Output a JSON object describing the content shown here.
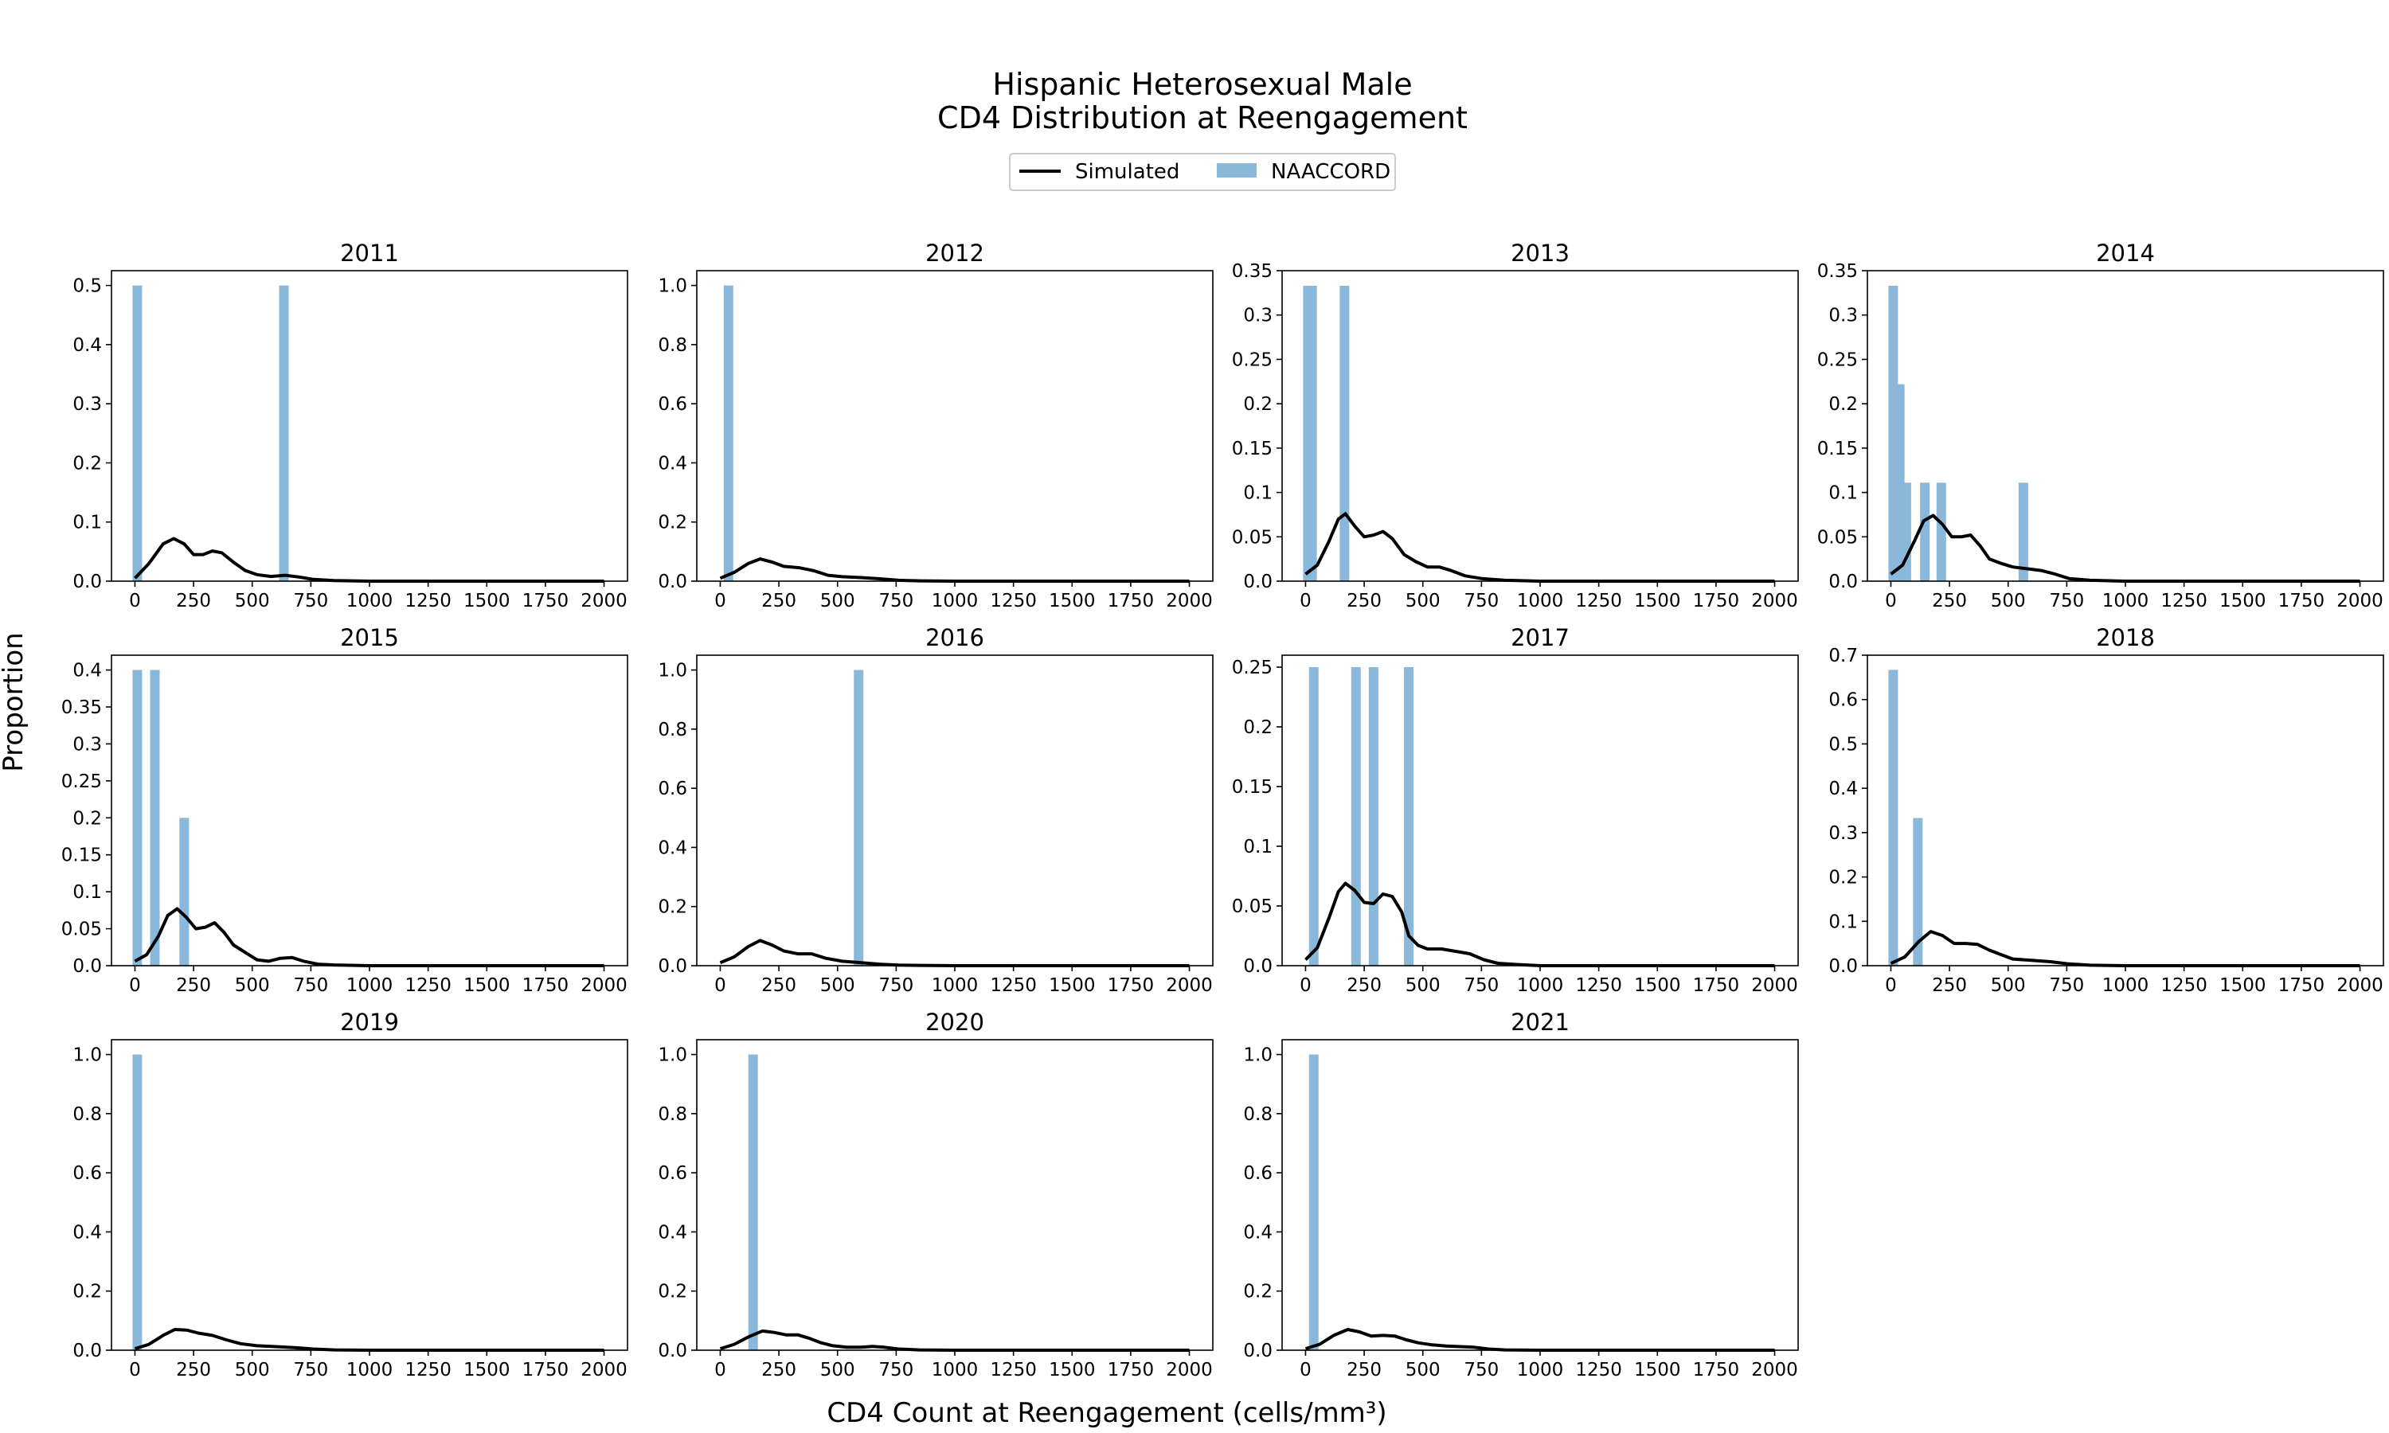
{
  "figure": {
    "title_lines": [
      "Hispanic Heterosexual Male",
      "CD4 Distribution at Reengagement"
    ],
    "xlabel": "CD4 Count at Reengagement (cells/mm³)",
    "ylabel": "Proportion"
  },
  "legend": {
    "placement": "top-center",
    "entries": [
      {
        "label": "Simulated",
        "kind": "line",
        "color": "#000000"
      },
      {
        "label": "NAACCORD",
        "kind": "bar",
        "color": "#8ab8da"
      }
    ]
  },
  "colors": {
    "simulated": "#000000",
    "naaccord": "#8ab8da"
  },
  "chart_data": [
    {
      "type": "bar+line",
      "title": "2011",
      "xlim": [
        -100,
        2100
      ],
      "ylim": [
        0,
        0.525
      ],
      "yticks": [
        0,
        0.1,
        0.2,
        0.3,
        0.4,
        0.5
      ],
      "bars": [
        {
          "x": 10,
          "h": 0.5
        },
        {
          "x": 635,
          "h": 0.5
        }
      ],
      "line": [
        [
          0,
          0.005
        ],
        [
          60,
          0.03
        ],
        [
          120,
          0.063
        ],
        [
          165,
          0.072
        ],
        [
          210,
          0.063
        ],
        [
          250,
          0.045
        ],
        [
          290,
          0.045
        ],
        [
          330,
          0.051
        ],
        [
          370,
          0.048
        ],
        [
          420,
          0.032
        ],
        [
          470,
          0.018
        ],
        [
          520,
          0.011
        ],
        [
          580,
          0.008
        ],
        [
          640,
          0.01
        ],
        [
          700,
          0.007
        ],
        [
          760,
          0.003
        ],
        [
          850,
          0.001
        ],
        [
          1000,
          0
        ],
        [
          2000,
          0
        ]
      ]
    },
    {
      "type": "bar+line",
      "title": "2012",
      "xlim": [
        -100,
        2100
      ],
      "ylim": [
        0,
        1.05
      ],
      "yticks": [
        0,
        0.2,
        0.4,
        0.6,
        0.8,
        1.0
      ],
      "bars": [
        {
          "x": 35,
          "h": 1.0
        }
      ],
      "line": [
        [
          0,
          0.01
        ],
        [
          60,
          0.03
        ],
        [
          120,
          0.06
        ],
        [
          170,
          0.075
        ],
        [
          220,
          0.065
        ],
        [
          270,
          0.05
        ],
        [
          340,
          0.045
        ],
        [
          400,
          0.035
        ],
        [
          460,
          0.02
        ],
        [
          520,
          0.015
        ],
        [
          600,
          0.012
        ],
        [
          680,
          0.008
        ],
        [
          760,
          0.003
        ],
        [
          850,
          0.001
        ],
        [
          1000,
          0
        ],
        [
          2000,
          0
        ]
      ]
    },
    {
      "type": "bar+line",
      "title": "2013",
      "xlim": [
        -100,
        2100
      ],
      "ylim": [
        0,
        0.35
      ],
      "yticks": [
        0,
        0.05,
        0.1,
        0.15,
        0.2,
        0.25,
        0.3,
        0.35
      ],
      "bars": [
        {
          "x": 10,
          "h": 0.333
        },
        {
          "x": 28,
          "h": 0.333
        },
        {
          "x": 166,
          "h": 0.333
        }
      ],
      "line": [
        [
          0,
          0.008
        ],
        [
          50,
          0.018
        ],
        [
          100,
          0.045
        ],
        [
          140,
          0.07
        ],
        [
          170,
          0.076
        ],
        [
          210,
          0.062
        ],
        [
          250,
          0.05
        ],
        [
          290,
          0.052
        ],
        [
          330,
          0.056
        ],
        [
          370,
          0.048
        ],
        [
          420,
          0.03
        ],
        [
          470,
          0.022
        ],
        [
          520,
          0.016
        ],
        [
          570,
          0.016
        ],
        [
          620,
          0.012
        ],
        [
          680,
          0.006
        ],
        [
          750,
          0.003
        ],
        [
          850,
          0.001
        ],
        [
          1000,
          0
        ],
        [
          2000,
          0
        ]
      ]
    },
    {
      "type": "bar+line",
      "title": "2014",
      "xlim": [
        -100,
        2100
      ],
      "ylim": [
        0,
        0.35
      ],
      "yticks": [
        0,
        0.05,
        0.1,
        0.15,
        0.2,
        0.25,
        0.3,
        0.35
      ],
      "bars": [
        {
          "x": 10,
          "h": 0.333
        },
        {
          "x": 38,
          "h": 0.222
        },
        {
          "x": 66,
          "h": 0.111
        },
        {
          "x": 145,
          "h": 0.111
        },
        {
          "x": 215,
          "h": 0.111
        },
        {
          "x": 565,
          "h": 0.111
        }
      ],
      "line": [
        [
          0,
          0.008
        ],
        [
          50,
          0.018
        ],
        [
          100,
          0.045
        ],
        [
          140,
          0.068
        ],
        [
          180,
          0.074
        ],
        [
          220,
          0.064
        ],
        [
          260,
          0.05
        ],
        [
          300,
          0.05
        ],
        [
          340,
          0.052
        ],
        [
          380,
          0.04
        ],
        [
          420,
          0.025
        ],
        [
          470,
          0.02
        ],
        [
          520,
          0.016
        ],
        [
          580,
          0.014
        ],
        [
          640,
          0.012
        ],
        [
          700,
          0.008
        ],
        [
          760,
          0.003
        ],
        [
          850,
          0.001
        ],
        [
          1000,
          0
        ],
        [
          2000,
          0
        ]
      ]
    },
    {
      "type": "bar+line",
      "title": "2015",
      "xlim": [
        -100,
        2100
      ],
      "ylim": [
        0,
        0.42
      ],
      "yticks": [
        0,
        0.05,
        0.1,
        0.15,
        0.2,
        0.25,
        0.3,
        0.35,
        0.4
      ],
      "bars": [
        {
          "x": 10,
          "h": 0.4
        },
        {
          "x": 85,
          "h": 0.4
        },
        {
          "x": 210,
          "h": 0.2
        }
      ],
      "line": [
        [
          0,
          0.006
        ],
        [
          50,
          0.015
        ],
        [
          100,
          0.04
        ],
        [
          140,
          0.068
        ],
        [
          180,
          0.077
        ],
        [
          220,
          0.065
        ],
        [
          260,
          0.05
        ],
        [
          300,
          0.052
        ],
        [
          340,
          0.058
        ],
        [
          380,
          0.045
        ],
        [
          420,
          0.028
        ],
        [
          470,
          0.018
        ],
        [
          520,
          0.008
        ],
        [
          570,
          0.006
        ],
        [
          620,
          0.01
        ],
        [
          670,
          0.011
        ],
        [
          720,
          0.006
        ],
        [
          780,
          0.002
        ],
        [
          850,
          0.001
        ],
        [
          1000,
          0
        ],
        [
          2000,
          0
        ]
      ]
    },
    {
      "type": "bar+line",
      "title": "2016",
      "xlim": [
        -100,
        2100
      ],
      "ylim": [
        0,
        1.05
      ],
      "yticks": [
        0,
        0.2,
        0.4,
        0.6,
        0.8,
        1.0
      ],
      "bars": [
        {
          "x": 590,
          "h": 1.0
        }
      ],
      "line": [
        [
          0,
          0.01
        ],
        [
          60,
          0.03
        ],
        [
          120,
          0.065
        ],
        [
          170,
          0.085
        ],
        [
          220,
          0.07
        ],
        [
          270,
          0.05
        ],
        [
          330,
          0.04
        ],
        [
          390,
          0.04
        ],
        [
          450,
          0.025
        ],
        [
          520,
          0.015
        ],
        [
          600,
          0.01
        ],
        [
          680,
          0.005
        ],
        [
          760,
          0.002
        ],
        [
          850,
          0.001
        ],
        [
          1000,
          0
        ],
        [
          2000,
          0
        ]
      ]
    },
    {
      "type": "bar+line",
      "title": "2017",
      "xlim": [
        -100,
        2100
      ],
      "ylim": [
        0,
        0.26
      ],
      "yticks": [
        0,
        0.05,
        0.1,
        0.15,
        0.2,
        0.25
      ],
      "bars": [
        {
          "x": 35,
          "h": 0.25
        },
        {
          "x": 215,
          "h": 0.25
        },
        {
          "x": 290,
          "h": 0.25
        },
        {
          "x": 440,
          "h": 0.25
        }
      ],
      "line": [
        [
          0,
          0.005
        ],
        [
          50,
          0.015
        ],
        [
          100,
          0.04
        ],
        [
          140,
          0.062
        ],
        [
          170,
          0.069
        ],
        [
          210,
          0.063
        ],
        [
          250,
          0.053
        ],
        [
          290,
          0.052
        ],
        [
          330,
          0.06
        ],
        [
          370,
          0.058
        ],
        [
          410,
          0.045
        ],
        [
          440,
          0.025
        ],
        [
          480,
          0.017
        ],
        [
          520,
          0.014
        ],
        [
          580,
          0.014
        ],
        [
          640,
          0.012
        ],
        [
          700,
          0.01
        ],
        [
          760,
          0.005
        ],
        [
          820,
          0.002
        ],
        [
          900,
          0.001
        ],
        [
          1000,
          0
        ],
        [
          2000,
          0
        ]
      ]
    },
    {
      "type": "bar+line",
      "title": "2018",
      "xlim": [
        -100,
        2100
      ],
      "ylim": [
        0,
        0.7
      ],
      "yticks": [
        0,
        0.1,
        0.2,
        0.3,
        0.4,
        0.5,
        0.6,
        0.7
      ],
      "bars": [
        {
          "x": 10,
          "h": 0.667
        },
        {
          "x": 115,
          "h": 0.333
        }
      ],
      "line": [
        [
          0,
          0.005
        ],
        [
          60,
          0.02
        ],
        [
          120,
          0.055
        ],
        [
          170,
          0.077
        ],
        [
          220,
          0.068
        ],
        [
          270,
          0.05
        ],
        [
          320,
          0.05
        ],
        [
          370,
          0.048
        ],
        [
          420,
          0.035
        ],
        [
          470,
          0.025
        ],
        [
          520,
          0.015
        ],
        [
          600,
          0.012
        ],
        [
          680,
          0.009
        ],
        [
          760,
          0.004
        ],
        [
          850,
          0.001
        ],
        [
          1000,
          0
        ],
        [
          2000,
          0
        ]
      ]
    },
    {
      "type": "bar+line",
      "title": "2019",
      "xlim": [
        -100,
        2100
      ],
      "ylim": [
        0,
        1.05
      ],
      "yticks": [
        0,
        0.2,
        0.4,
        0.6,
        0.8,
        1.0
      ],
      "bars": [
        {
          "x": 10,
          "h": 1.0
        }
      ],
      "line": [
        [
          0,
          0.005
        ],
        [
          60,
          0.02
        ],
        [
          120,
          0.05
        ],
        [
          170,
          0.07
        ],
        [
          220,
          0.068
        ],
        [
          270,
          0.058
        ],
        [
          330,
          0.05
        ],
        [
          390,
          0.035
        ],
        [
          450,
          0.022
        ],
        [
          520,
          0.015
        ],
        [
          600,
          0.012
        ],
        [
          680,
          0.009
        ],
        [
          760,
          0.004
        ],
        [
          850,
          0.001
        ],
        [
          1000,
          0
        ],
        [
          2000,
          0
        ]
      ]
    },
    {
      "type": "bar+line",
      "title": "2020",
      "xlim": [
        -100,
        2100
      ],
      "ylim": [
        0,
        1.05
      ],
      "yticks": [
        0,
        0.2,
        0.4,
        0.6,
        0.8,
        1.0
      ],
      "bars": [
        {
          "x": 140,
          "h": 1.0
        }
      ],
      "line": [
        [
          0,
          0.005
        ],
        [
          60,
          0.02
        ],
        [
          120,
          0.045
        ],
        [
          180,
          0.065
        ],
        [
          230,
          0.06
        ],
        [
          280,
          0.052
        ],
        [
          330,
          0.052
        ],
        [
          380,
          0.04
        ],
        [
          430,
          0.025
        ],
        [
          480,
          0.015
        ],
        [
          540,
          0.01
        ],
        [
          600,
          0.01
        ],
        [
          650,
          0.013
        ],
        [
          700,
          0.01
        ],
        [
          760,
          0.004
        ],
        [
          850,
          0.001
        ],
        [
          1000,
          0
        ],
        [
          2000,
          0
        ]
      ]
    },
    {
      "type": "bar+line",
      "title": "2021",
      "xlim": [
        -100,
        2100
      ],
      "ylim": [
        0,
        1.05
      ],
      "yticks": [
        0,
        0.2,
        0.4,
        0.6,
        0.8,
        1.0
      ],
      "bars": [
        {
          "x": 35,
          "h": 1.0
        }
      ],
      "line": [
        [
          0,
          0.005
        ],
        [
          60,
          0.02
        ],
        [
          120,
          0.05
        ],
        [
          180,
          0.07
        ],
        [
          230,
          0.062
        ],
        [
          280,
          0.048
        ],
        [
          330,
          0.05
        ],
        [
          380,
          0.048
        ],
        [
          430,
          0.035
        ],
        [
          480,
          0.025
        ],
        [
          540,
          0.018
        ],
        [
          600,
          0.014
        ],
        [
          660,
          0.012
        ],
        [
          720,
          0.01
        ],
        [
          780,
          0.004
        ],
        [
          850,
          0.001
        ],
        [
          1000,
          0
        ],
        [
          2000,
          0
        ]
      ]
    }
  ]
}
